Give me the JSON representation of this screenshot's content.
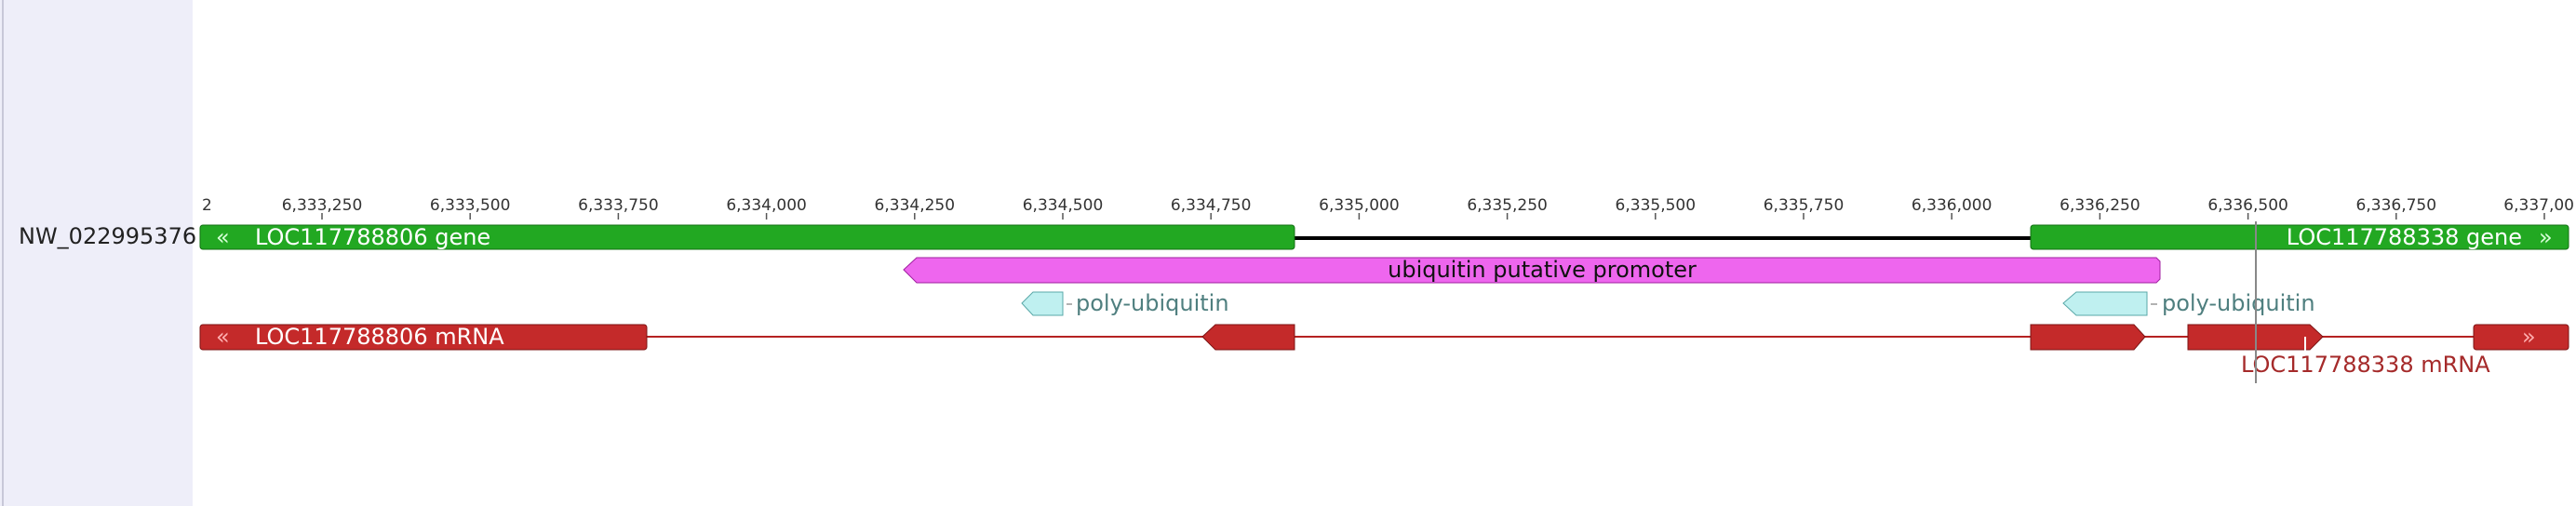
{
  "sequence": {
    "name": "NW_022995376"
  },
  "ruler": {
    "ticks": [
      "2",
      "6,333,250",
      "6,333,500",
      "6,333,750",
      "6,334,000",
      "6,334,250",
      "6,334,500",
      "6,334,750",
      "6,335,000",
      "6,335,250",
      "6,335,500",
      "6,335,750",
      "6,336,000",
      "6,336,250",
      "6,336,500",
      "6,336,750",
      "6,337,00"
    ]
  },
  "features": {
    "gene_left": "LOC117788806 gene",
    "gene_right": "LOC117788338 gene",
    "promoter": "ubiquitin putative promoter",
    "cds_left": "poly-ubiquitin",
    "cds_right": "poly-ubiquitin",
    "mrna_left": "LOC117788806 mRNA",
    "mrna_right": "LOC117788338 mRNA"
  }
}
